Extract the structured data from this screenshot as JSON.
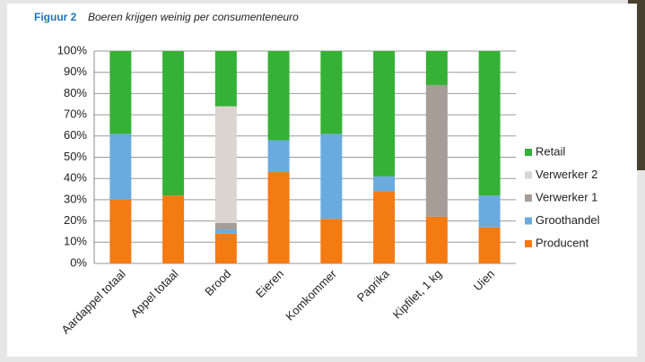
{
  "chart_data": {
    "type": "stacked_bar",
    "figure_label": "Figuur 2",
    "title": "Boeren krijgen weinig per consumenteneuro",
    "categories": [
      "Aardappel totaal",
      "Appel totaal",
      "Brood",
      "Eieren",
      "Komkommer",
      "Paprika",
      "Kipfilet, 1 kg",
      "Uien"
    ],
    "series": [
      {
        "name": "Producent",
        "color": "#f47a12",
        "values": [
          30,
          32,
          14,
          43,
          21,
          34,
          22,
          17
        ]
      },
      {
        "name": "Groothandel",
        "color": "#6aabdf",
        "values": [
          31,
          0,
          2,
          15,
          40,
          7,
          0,
          15
        ]
      },
      {
        "name": "Verwerker 1",
        "color": "#a59d96",
        "values": [
          0,
          0,
          3,
          0,
          0,
          0,
          62,
          0
        ]
      },
      {
        "name": "Verwerker 2",
        "color": "#dad6cf",
        "values": [
          0,
          0,
          55,
          0,
          0,
          0,
          0,
          0
        ]
      },
      {
        "name": "Retail",
        "color": "#35b135",
        "values": [
          39,
          68,
          26,
          42,
          39,
          59,
          16,
          68
        ]
      }
    ],
    "ylim": [
      0,
      100
    ],
    "yticks": [
      {
        "value": 0,
        "label": "0%"
      },
      {
        "value": 10,
        "label": "10%"
      },
      {
        "value": 20,
        "label": "20%"
      },
      {
        "value": 30,
        "label": "30%"
      },
      {
        "value": 40,
        "label": "40%"
      },
      {
        "value": 50,
        "label": "50%"
      },
      {
        "value": 60,
        "label": "60%"
      },
      {
        "value": 70,
        "label": "70%"
      },
      {
        "value": 80,
        "label": "80%"
      },
      {
        "value": 90,
        "label": "90%"
      },
      {
        "value": 100,
        "label": "100%"
      }
    ],
    "grid": true,
    "legend": "right"
  }
}
